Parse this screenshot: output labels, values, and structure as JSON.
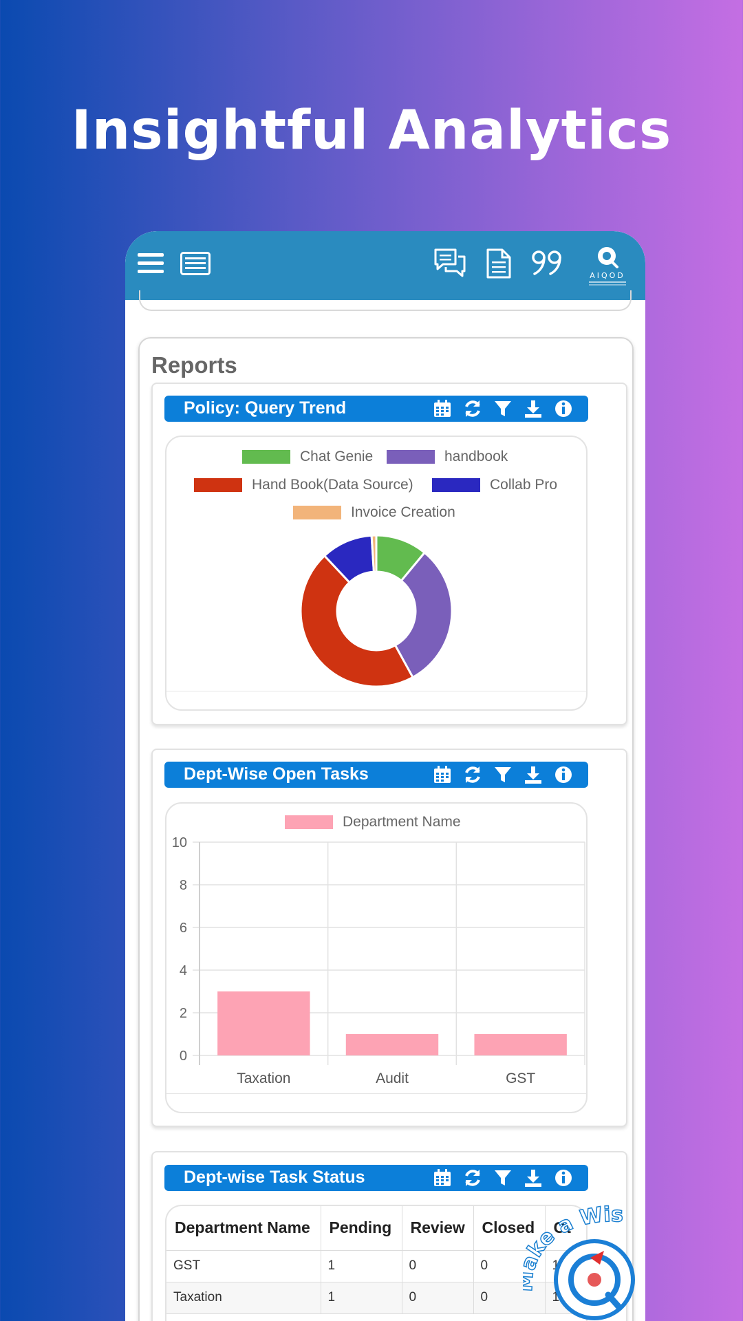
{
  "headline": "Insightful Analytics",
  "app": {
    "logo_text": "AIQOD",
    "reports_title": "Reports"
  },
  "policy_panel": {
    "title": "Policy: Query Trend",
    "legend": [
      {
        "label": "Chat Genie",
        "color": "#62bb4f"
      },
      {
        "label": "handbook",
        "color": "#7a5fba"
      },
      {
        "label": "Hand Book(Data Source)",
        "color": "#cf3311"
      },
      {
        "label": "Collab Pro",
        "color": "#2a28c0"
      },
      {
        "label": "Invoice Creation",
        "color": "#f2b47a"
      }
    ]
  },
  "dept_open_panel": {
    "title": "Dept-Wise Open Tasks",
    "legend_label": "Department Name",
    "bar_color": "#fda3b4"
  },
  "task_status_panel": {
    "title": "Dept-wise Task Status",
    "headers": [
      "Department Name",
      "Pending",
      "Review",
      "Closed",
      "Ot"
    ],
    "rows": [
      [
        "GST",
        "1",
        "0",
        "0",
        "1"
      ],
      [
        "Taxation",
        "1",
        "0",
        "0",
        "1"
      ]
    ]
  },
  "wish_badge": {
    "label": "Make a Wish"
  },
  "chart_data": [
    {
      "type": "pie",
      "variant": "doughnut",
      "categories": [
        "Chat Genie",
        "handbook",
        "Hand Book(Data Source)",
        "Collab Pro",
        "Invoice Creation"
      ],
      "values": [
        11,
        31,
        46,
        11,
        1
      ]
    },
    {
      "type": "bar",
      "categories": [
        "Taxation",
        "Audit",
        "GST"
      ],
      "series": [
        {
          "name": "Department Name",
          "values": [
            3,
            1,
            1
          ]
        }
      ],
      "ylim": [
        0,
        10
      ],
      "yticks": [
        0,
        2,
        4,
        6,
        8,
        10
      ],
      "grid": true,
      "legend": "top"
    }
  ]
}
